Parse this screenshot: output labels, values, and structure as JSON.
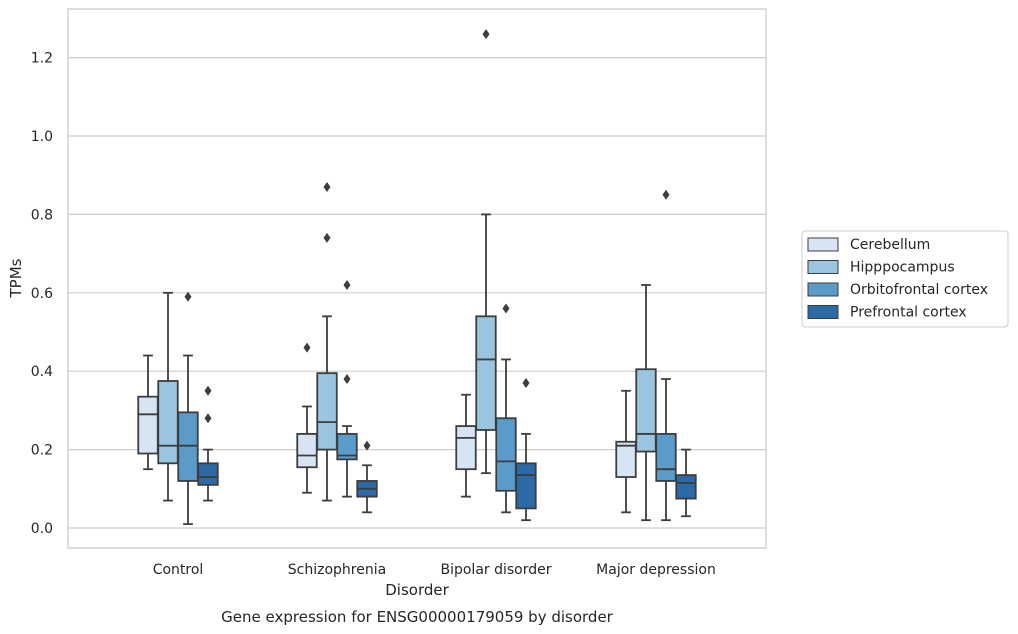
{
  "chart_data": {
    "type": "box",
    "caption": "Gene expression for ENSG00000179059 by disorder",
    "xlabel": "Disorder",
    "ylabel": "TPMs",
    "ylim": [
      -0.05,
      1.32
    ],
    "yticks": [
      0.0,
      0.2,
      0.4,
      0.6,
      0.8,
      1.0,
      1.2
    ],
    "ytick_labels": [
      "0.0",
      "0.2",
      "0.4",
      "0.6",
      "0.8",
      "1.0",
      "1.2"
    ],
    "grid": "horizontal",
    "legend_position": "right",
    "categories": [
      "Control",
      "Schizophrenia",
      "Bipolar disorder",
      "Major depression"
    ],
    "series": [
      {
        "name": "Cerebellum",
        "color": "#d6e4f3",
        "boxes": [
          {
            "whisker_low": 0.15,
            "q1": 0.19,
            "median": 0.29,
            "q3": 0.335,
            "whisker_high": 0.44,
            "outliers": []
          },
          {
            "whisker_low": 0.09,
            "q1": 0.155,
            "median": 0.185,
            "q3": 0.24,
            "whisker_high": 0.31,
            "outliers": [
              0.46
            ]
          },
          {
            "whisker_low": 0.08,
            "q1": 0.15,
            "median": 0.23,
            "q3": 0.26,
            "whisker_high": 0.34,
            "outliers": []
          },
          {
            "whisker_low": 0.04,
            "q1": 0.13,
            "median": 0.21,
            "q3": 0.22,
            "whisker_high": 0.35,
            "outliers": []
          }
        ]
      },
      {
        "name": "Hipppocampus",
        "color": "#9ac5e0",
        "boxes": [
          {
            "whisker_low": 0.07,
            "q1": 0.165,
            "median": 0.21,
            "q3": 0.375,
            "whisker_high": 0.6,
            "outliers": []
          },
          {
            "whisker_low": 0.07,
            "q1": 0.2,
            "median": 0.27,
            "q3": 0.395,
            "whisker_high": 0.54,
            "outliers": [
              0.74,
              0.87
            ]
          },
          {
            "whisker_low": 0.14,
            "q1": 0.25,
            "median": 0.43,
            "q3": 0.54,
            "whisker_high": 0.8,
            "outliers": [
              1.26
            ]
          },
          {
            "whisker_low": 0.02,
            "q1": 0.195,
            "median": 0.24,
            "q3": 0.405,
            "whisker_high": 0.62,
            "outliers": []
          }
        ]
      },
      {
        "name": "Orbitofrontal cortex",
        "color": "#5a9bc9",
        "boxes": [
          {
            "whisker_low": 0.01,
            "q1": 0.12,
            "median": 0.21,
            "q3": 0.295,
            "whisker_high": 0.44,
            "outliers": [
              0.59
            ]
          },
          {
            "whisker_low": 0.08,
            "q1": 0.175,
            "median": 0.185,
            "q3": 0.24,
            "whisker_high": 0.26,
            "outliers": [
              0.38,
              0.62
            ]
          },
          {
            "whisker_low": 0.04,
            "q1": 0.095,
            "median": 0.17,
            "q3": 0.28,
            "whisker_high": 0.43,
            "outliers": [
              0.56
            ]
          },
          {
            "whisker_low": 0.02,
            "q1": 0.12,
            "median": 0.15,
            "q3": 0.24,
            "whisker_high": 0.38,
            "outliers": [
              0.85
            ]
          }
        ]
      },
      {
        "name": "Prefrontal cortex",
        "color": "#2b6aa7",
        "boxes": [
          {
            "whisker_low": 0.07,
            "q1": 0.11,
            "median": 0.13,
            "q3": 0.165,
            "whisker_high": 0.2,
            "outliers": [
              0.28,
              0.35
            ]
          },
          {
            "whisker_low": 0.04,
            "q1": 0.08,
            "median": 0.1,
            "q3": 0.12,
            "whisker_high": 0.16,
            "outliers": [
              0.21
            ]
          },
          {
            "whisker_low": 0.02,
            "q1": 0.05,
            "median": 0.135,
            "q3": 0.165,
            "whisker_high": 0.24,
            "outliers": [
              0.37
            ]
          },
          {
            "whisker_low": 0.03,
            "q1": 0.075,
            "median": 0.115,
            "q3": 0.135,
            "whisker_high": 0.2,
            "outliers": []
          }
        ]
      }
    ]
  }
}
